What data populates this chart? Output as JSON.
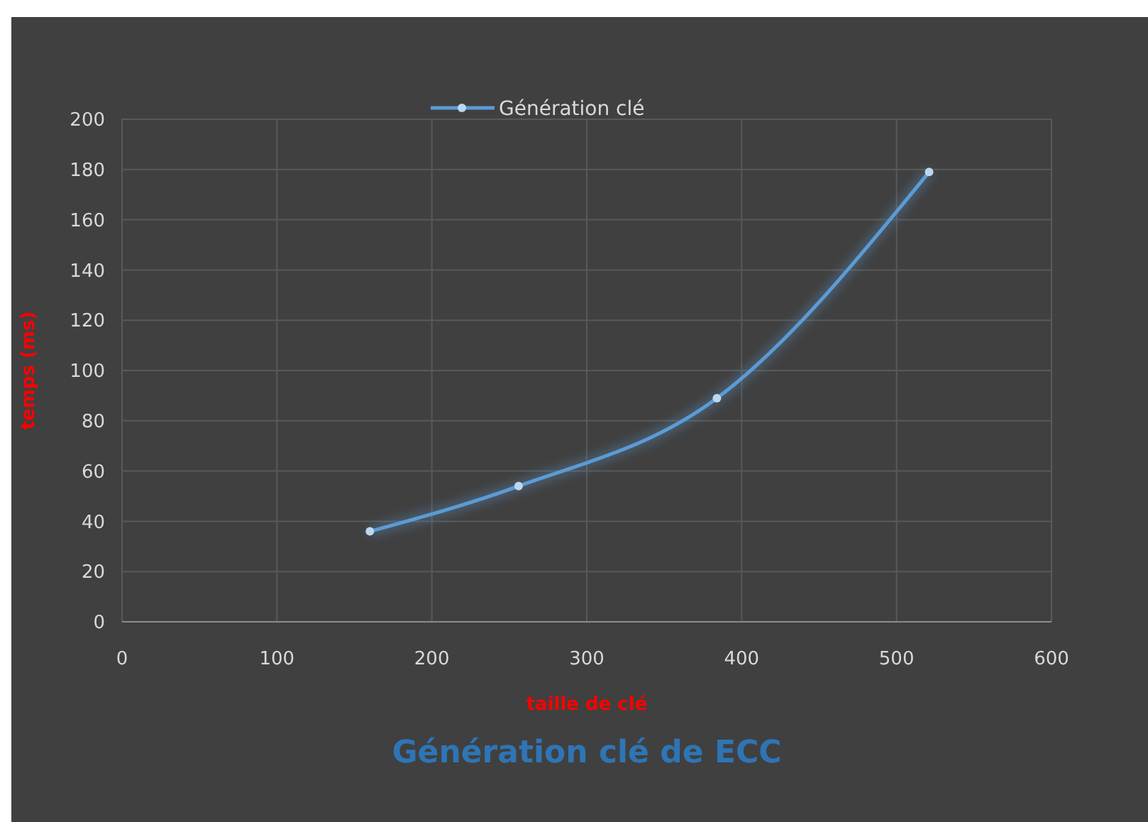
{
  "chart_data": {
    "type": "line",
    "title": "Génération clé de ECC",
    "xlabel": "taille de clé",
    "ylabel": "temps (ms)",
    "x": [
      160,
      256,
      384,
      521
    ],
    "series": [
      {
        "name": "Génération clé",
        "color": "#5b9bd5",
        "values": [
          36,
          54,
          89,
          179
        ]
      }
    ],
    "xlim": [
      0,
      600
    ],
    "xticks": [
      0,
      100,
      200,
      300,
      400,
      500,
      600
    ],
    "ylim": [
      0,
      200
    ],
    "yticks": [
      0,
      20,
      40,
      60,
      80,
      100,
      120,
      140,
      160,
      180,
      200
    ],
    "grid": true,
    "legend": "top",
    "marker": "circle",
    "line_style": "solid"
  }
}
